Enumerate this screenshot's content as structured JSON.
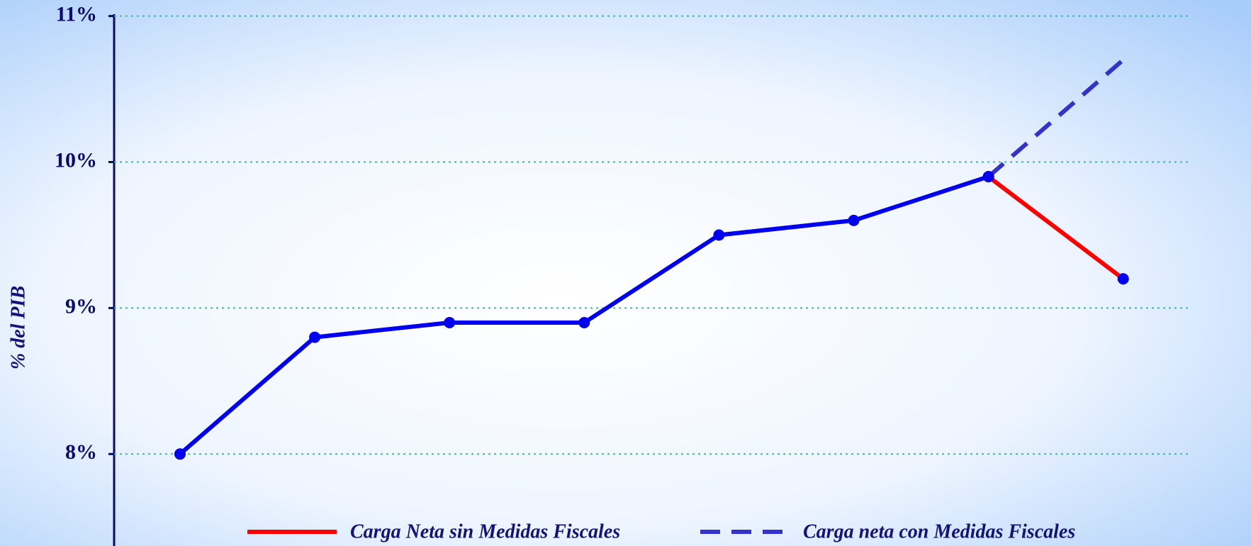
{
  "chart_data": {
    "type": "line",
    "y_label": "% del PIB",
    "categories": [
      null,
      null,
      null,
      null,
      null,
      null,
      null,
      null
    ],
    "series": [
      {
        "color": "#0000ee",
        "dash": false,
        "markers": true,
        "marker_color": "#0000ee",
        "values": [
          8.0,
          8.8,
          8.9,
          8.9,
          9.5,
          9.6,
          9.9,
          null
        ]
      },
      {
        "name": "Carga Neta sin Medidas Fiscales",
        "color": "#ff0000",
        "dash": false,
        "markers": true,
        "marker_color": "#0000ee",
        "values": [
          null,
          null,
          null,
          null,
          null,
          null,
          9.9,
          9.2
        ]
      },
      {
        "name": "Carga neta con Medidas Fiscales",
        "color": "#3333cc",
        "dash": true,
        "markers": false,
        "values": [
          null,
          null,
          null,
          null,
          null,
          null,
          9.9,
          10.7
        ]
      }
    ],
    "ylim": [
      7.37,
      11.11
    ],
    "yticks": [
      {
        "value": 8,
        "label": "8%"
      },
      {
        "value": 9,
        "label": "9%"
      },
      {
        "value": 10,
        "label": "10%"
      },
      {
        "value": 11,
        "label": "11%"
      }
    ],
    "grid": true,
    "grid_color": "#1fc9a0",
    "legend": "bottom"
  }
}
